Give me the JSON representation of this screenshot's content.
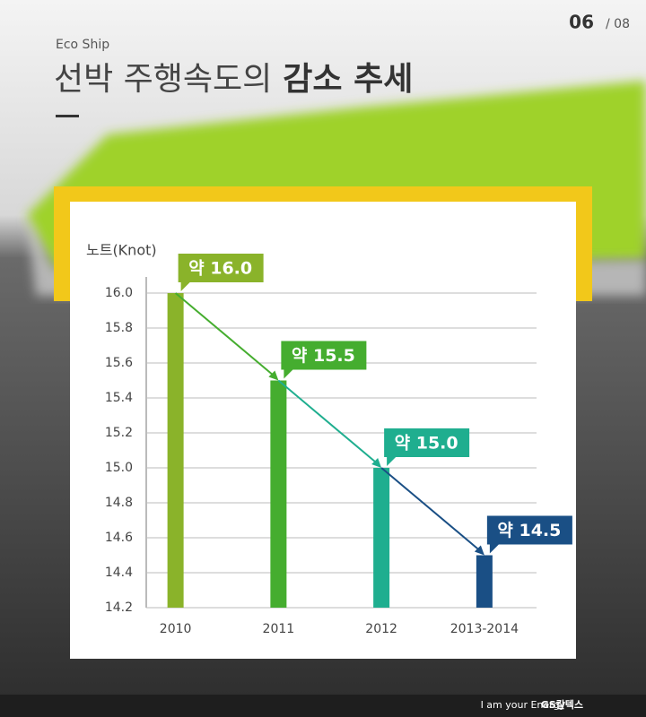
{
  "page": {
    "current": "06",
    "total": "/ 08",
    "kicker": "Eco Ship",
    "title_light": "선박 주행속도의",
    "title_bold": "감소 추세",
    "footer_slogan": "I am your Energy",
    "footer_brand": "GS칼텍스"
  },
  "chart_data": {
    "type": "bar",
    "y_label": "노트(Knot)",
    "categories": [
      "2010",
      "2011",
      "2012",
      "2013-2014"
    ],
    "values": [
      16,
      15.5,
      15,
      14.5
    ],
    "value_labels": [
      "약 16.0",
      "약 15.5",
      "약 15.0",
      "약 14.5"
    ],
    "colors": [
      "#8ab32a",
      "#45ad2f",
      "#1fae8f",
      "#1a4f85"
    ],
    "ylim": [
      14.2,
      16
    ],
    "yticks": [
      14.2,
      14.4,
      14.6,
      14.8,
      {
        "value": 15,
        "label": "15.0"
      },
      15.2,
      15.4,
      15.6,
      15.8,
      {
        "value": 16,
        "label": "16.0"
      }
    ],
    "grid": true
  }
}
